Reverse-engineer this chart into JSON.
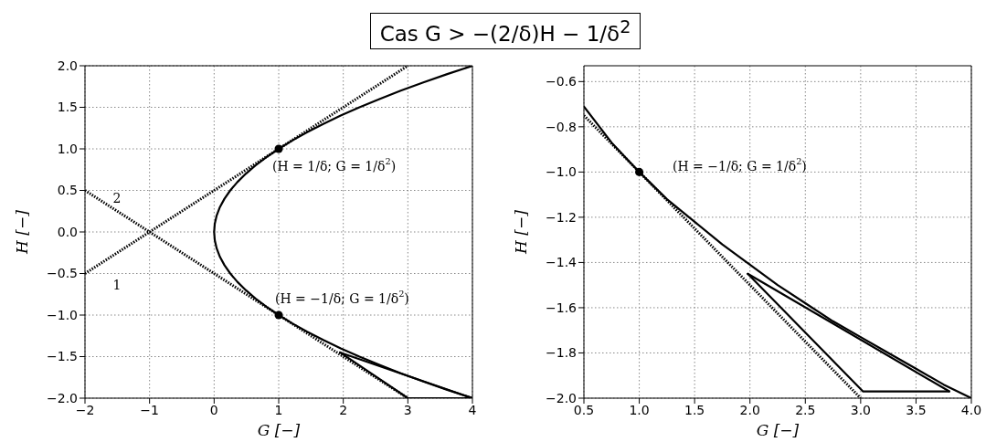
{
  "chart_data": [
    {
      "type": "line",
      "title": "Cas G > −(2/δ)H − 1/δ$^{2}$",
      "xlabel": "G [−]",
      "ylabel": "H [−]",
      "grid": true,
      "xlim": [
        -2,
        4
      ],
      "ylim": [
        -2,
        2
      ],
      "xticks": [
        {
          "value": -2,
          "label": "−2"
        },
        {
          "value": -1,
          "label": "−1"
        },
        0,
        1,
        2,
        3,
        4
      ],
      "yticks": [
        {
          "value": -2,
          "label": "−2.0"
        },
        {
          "value": -1.5,
          "label": "−1.5"
        },
        {
          "value": -1,
          "label": "−1.0"
        },
        {
          "value": -0.5,
          "label": "−0.5"
        },
        {
          "value": 0,
          "label": "0.0"
        },
        {
          "value": 0.5,
          "label": "0.5"
        },
        {
          "value": 1,
          "label": "1.0"
        },
        {
          "value": 1.5,
          "label": "1.5"
        },
        {
          "value": 2,
          "label": "2.0"
        }
      ],
      "series": [
        {
          "color": "#000000",
          "line_style": "solid",
          "x": [
            4,
            3.61,
            3.24,
            2.89,
            2.56,
            2.25,
            1.96,
            1.69,
            1.44,
            1.21,
            1,
            0.81,
            0.64,
            0.49,
            0.36,
            0.25,
            0.16,
            0.09,
            0.04,
            0.01,
            0,
            0.01,
            0.04,
            0.09,
            0.16,
            0.25,
            0.36,
            0.49,
            0.64,
            0.81,
            1,
            1.21,
            1.44,
            1.69,
            1.96,
            2.25,
            2.56,
            2.89,
            3.24,
            3.61,
            4
          ],
          "values": [
            -2,
            -1.9,
            -1.8,
            -1.7,
            -1.6,
            -1.5,
            -1.4,
            -1.3,
            -1.2,
            -1.1,
            -1,
            -0.9,
            -0.8,
            -0.7,
            -0.6,
            -0.5,
            -0.4,
            -0.3,
            -0.2,
            -0.1,
            0,
            0.1,
            0.2,
            0.3,
            0.4,
            0.5,
            0.6,
            0.7,
            0.8,
            0.9,
            1,
            1.1,
            1.2,
            1.3,
            1.4,
            1.5,
            1.6,
            1.7,
            1.8,
            1.9,
            2
          ]
        },
        {
          "color": "#000000",
          "line_style": "dotted",
          "x": [
            -2,
            3
          ],
          "values": [
            -0.5,
            2
          ]
        },
        {
          "color": "#000000",
          "line_style": "dotted",
          "x": [
            -2,
            3
          ],
          "values": [
            0.5,
            -2
          ]
        },
        {
          "color": "#000000",
          "line_style": "solid",
          "x": [
            1.95,
            3,
            4
          ],
          "values": [
            -1.45,
            -2,
            -2
          ]
        },
        {
          "color": "#000000",
          "line_style": "solid",
          "x": [
            1.95,
            4
          ],
          "values": [
            -1.45,
            -2
          ]
        },
        {
          "type": "scatter",
          "color": "#000000",
          "marker": "circle",
          "x": [
            1,
            1
          ],
          "values": [
            1,
            -1
          ]
        }
      ],
      "annotations": [
        "(H = 1/δ; G = 1/δ$^{2}$)",
        "(H = −1/δ; G = 1/δ$^{2}$)",
        "1",
        "2"
      ]
    },
    {
      "type": "line",
      "xlabel": "G [−]",
      "ylabel": "H [−]",
      "grid": true,
      "xlim": [
        0.5,
        4
      ],
      "ylim": [
        -2,
        -0.53
      ],
      "xticks": [
        {
          "value": 0.5,
          "label": "0.5"
        },
        {
          "value": 1,
          "label": "1.0"
        },
        {
          "value": 1.5,
          "label": "1.5"
        },
        {
          "value": 2,
          "label": "2.0"
        },
        {
          "value": 2.5,
          "label": "2.5"
        },
        {
          "value": 3,
          "label": "3.0"
        },
        {
          "value": 3.5,
          "label": "3.5"
        },
        {
          "value": 4,
          "label": "4.0"
        }
      ],
      "yticks": [
        {
          "value": -2,
          "label": "−2.0"
        },
        {
          "value": -1.8,
          "label": "−1.8"
        },
        {
          "value": -1.6,
          "label": "−1.6"
        },
        {
          "value": -1.4,
          "label": "−1.4"
        },
        {
          "value": -1.2,
          "label": "−1.2"
        },
        {
          "value": -1,
          "label": "−1.0"
        },
        {
          "value": -0.8,
          "label": "−0.8"
        },
        {
          "value": -0.6,
          "label": "−0.6"
        }
      ],
      "series": [
        {
          "color": "#000000",
          "line_style": "solid",
          "x": [
            0.5,
            0.75,
            1,
            1.25,
            1.5,
            1.75,
            2,
            2.25,
            2.5,
            2.75,
            3,
            3.25,
            3.5,
            3.75,
            4
          ],
          "values": [
            -0.71,
            -0.87,
            -1,
            -1.12,
            -1.22,
            -1.32,
            -1.41,
            -1.5,
            -1.58,
            -1.66,
            -1.73,
            -1.8,
            -1.87,
            -1.94,
            -2
          ]
        },
        {
          "color": "#000000",
          "line_style": "dotted",
          "x": [
            0.5,
            3
          ],
          "values": [
            -0.75,
            -2
          ]
        },
        {
          "color": "#000000",
          "line_style": "solid",
          "x": [
            1.98,
            3.02,
            3.8
          ],
          "values": [
            -1.45,
            -1.97,
            -1.97
          ]
        },
        {
          "color": "#000000",
          "line_style": "solid",
          "x": [
            1.98,
            3.8
          ],
          "values": [
            -1.45,
            -1.97
          ]
        },
        {
          "type": "scatter",
          "color": "#000000",
          "marker": "circle",
          "x": [
            1
          ],
          "values": [
            -1
          ]
        }
      ],
      "annotations": [
        "(H = −1/δ; G = 1/δ$^{2}$)"
      ]
    }
  ]
}
